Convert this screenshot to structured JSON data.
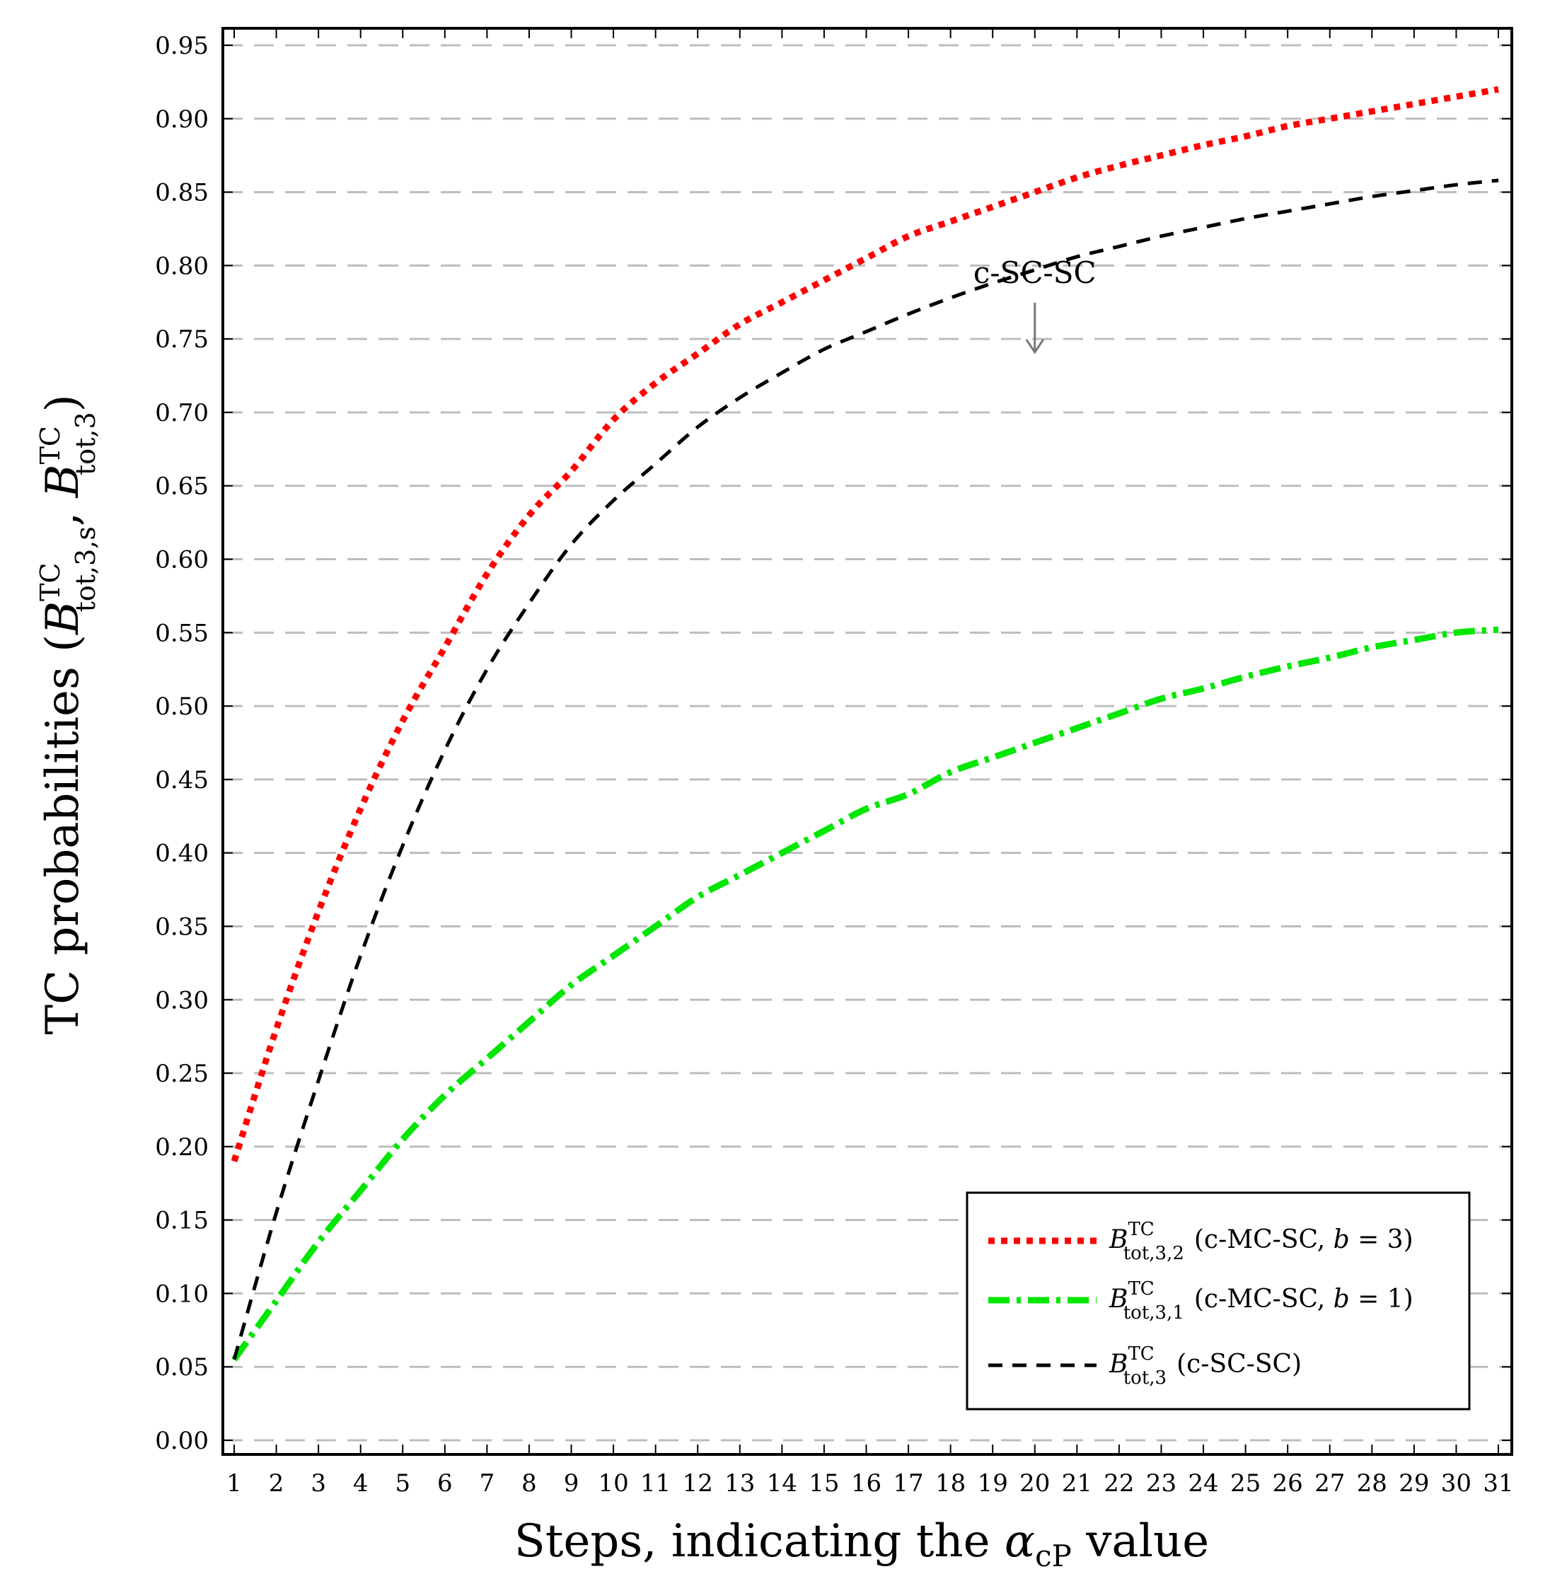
{
  "chart_data": {
    "type": "line",
    "title": "",
    "xlabel": "Steps, indicating the αcP value",
    "xlabel_parts": {
      "main": "Steps, indicating the ",
      "symbol": "α",
      "subscript": "cP",
      "tail": " value"
    },
    "ylabel": "TC probabilities (B TC tot,3,s, B TC tot,3)",
    "ylabel_parts": {
      "prefix": "TC probabilities (",
      "sym1": "B",
      "sup1": "TC",
      "sub1": "tot,3,s",
      "sep": ", ",
      "sym2": "B",
      "sup2": "TC",
      "sub2": "tot,3",
      "suffix": ")"
    },
    "xlim": [
      1,
      31
    ],
    "ylim": [
      0.0,
      0.95
    ],
    "grid": "horizontal-dashed",
    "x_ticks": [
      "1",
      "2",
      "3",
      "4",
      "5",
      "6",
      "7",
      "8",
      "9",
      "10",
      "11",
      "12",
      "13",
      "14",
      "15",
      "16",
      "17",
      "18",
      "19",
      "20",
      "21",
      "22",
      "23",
      "24",
      "25",
      "26",
      "27",
      "28",
      "29",
      "30",
      "31"
    ],
    "y_ticks": [
      "0.00",
      "0.05",
      "0.10",
      "0.15",
      "0.20",
      "0.25",
      "0.30",
      "0.35",
      "0.40",
      "0.45",
      "0.50",
      "0.55",
      "0.60",
      "0.65",
      "0.70",
      "0.75",
      "0.80",
      "0.85",
      "0.90",
      "0.95"
    ],
    "x": [
      1,
      2,
      3,
      4,
      5,
      6,
      7,
      8,
      9,
      10,
      11,
      12,
      13,
      14,
      15,
      16,
      17,
      18,
      19,
      20,
      21,
      22,
      23,
      24,
      25,
      26,
      27,
      28,
      29,
      30,
      31
    ],
    "series": [
      {
        "name": "B TC tot,3,2 (c-MC-SC, b = 3)",
        "color": "#ff0000",
        "style": "dotted",
        "values": [
          0.19,
          0.28,
          0.36,
          0.43,
          0.49,
          0.54,
          0.59,
          0.63,
          0.66,
          0.695,
          0.72,
          0.74,
          0.76,
          0.775,
          0.79,
          0.805,
          0.82,
          0.83,
          0.84,
          0.85,
          0.86,
          0.868,
          0.875,
          0.882,
          0.888,
          0.895,
          0.9,
          0.905,
          0.91,
          0.915,
          0.92
        ]
      },
      {
        "name": "B TC tot,3,1 (c-MC-SC, b = 1)",
        "color": "#00e600",
        "style": "dashdot",
        "values": [
          0.055,
          0.095,
          0.135,
          0.17,
          0.205,
          0.235,
          0.26,
          0.285,
          0.31,
          0.33,
          0.35,
          0.37,
          0.385,
          0.4,
          0.415,
          0.43,
          0.44,
          0.455,
          0.465,
          0.475,
          0.485,
          0.495,
          0.505,
          0.512,
          0.52,
          0.527,
          0.533,
          0.54,
          0.545,
          0.55,
          0.552
        ]
      },
      {
        "name": "B TC tot,3 (c-SC-SC)",
        "color": "#000000",
        "style": "dashed",
        "values": [
          0.055,
          0.155,
          0.245,
          0.33,
          0.405,
          0.47,
          0.525,
          0.57,
          0.61,
          0.64,
          0.665,
          0.69,
          0.71,
          0.727,
          0.743,
          0.755,
          0.767,
          0.778,
          0.788,
          0.797,
          0.806,
          0.813,
          0.82,
          0.826,
          0.832,
          0.837,
          0.842,
          0.847,
          0.851,
          0.855,
          0.858
        ]
      }
    ],
    "legend": {
      "position": "bottom-right",
      "entries": [
        {
          "sym": "B",
          "sup": "TC",
          "sub": "tot,3,2",
          "desc_pre": "(c-MC-SC, ",
          "desc_var": "b",
          "desc_post": " = 3)"
        },
        {
          "sym": "B",
          "sup": "TC",
          "sub": "tot,3,1",
          "desc_pre": "(c-MC-SC, ",
          "desc_var": "b",
          "desc_post": " = 1)"
        },
        {
          "sym": "B",
          "sup": "TC",
          "sub": "tot,3",
          "desc_pre": "(c-SC-SC)",
          "desc_var": "",
          "desc_post": ""
        }
      ]
    },
    "annotations": [
      {
        "text": "c-SC-SC",
        "arrow_to": {
          "x": 20,
          "y": 0.74
        }
      }
    ]
  }
}
